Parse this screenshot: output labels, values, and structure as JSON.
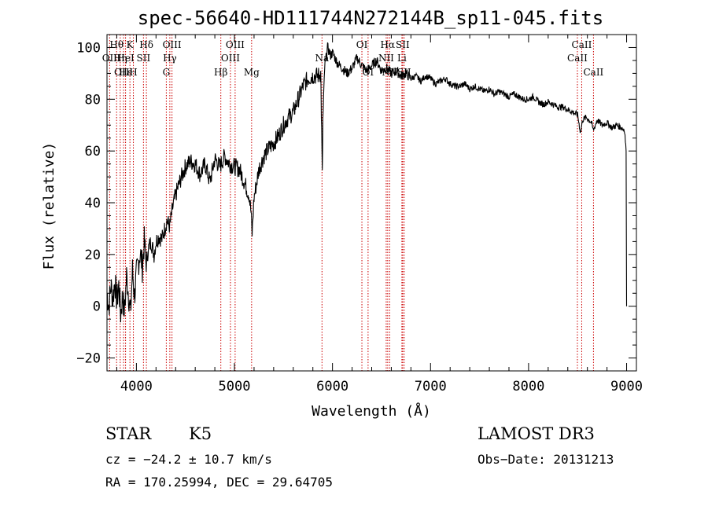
{
  "chart_data": {
    "type": "line",
    "title": "spec-56640-HD111744N272144B_sp11-045.fits",
    "xlabel": "Wavelength (Å)",
    "ylabel": "Flux (relative)",
    "xlim": [
      3700,
      9100
    ],
    "ylim": [
      -25,
      105
    ],
    "x_ticks": [
      4000,
      5000,
      6000,
      7000,
      8000,
      9000
    ],
    "x_tick_labels": [
      "4000",
      "5000",
      "6000",
      "7000",
      "8000",
      "9000"
    ],
    "y_ticks": [
      -20,
      0,
      20,
      40,
      60,
      80,
      100
    ],
    "y_tick_labels": [
      "−20",
      "0",
      "20",
      "40",
      "60",
      "80",
      "100"
    ],
    "series": [
      {
        "name": "flux",
        "anchors": [
          [
            3700,
            5
          ],
          [
            3720,
            0
          ],
          [
            3740,
            8
          ],
          [
            3760,
            3
          ],
          [
            3780,
            10
          ],
          [
            3800,
            2
          ],
          [
            3820,
            8
          ],
          [
            3840,
            -3
          ],
          [
            3860,
            4
          ],
          [
            3880,
            -2
          ],
          [
            3900,
            12
          ],
          [
            3920,
            5
          ],
          [
            3940,
            -3
          ],
          [
            3960,
            14
          ],
          [
            3980,
            4
          ],
          [
            4000,
            12
          ],
          [
            4020,
            17
          ],
          [
            4040,
            21
          ],
          [
            4060,
            15
          ],
          [
            4080,
            25
          ],
          [
            4100,
            16
          ],
          [
            4120,
            22
          ],
          [
            4150,
            25
          ],
          [
            4180,
            20
          ],
          [
            4200,
            25
          ],
          [
            4230,
            27
          ],
          [
            4260,
            26
          ],
          [
            4290,
            30
          ],
          [
            4310,
            33
          ],
          [
            4340,
            31
          ],
          [
            4370,
            38
          ],
          [
            4400,
            43
          ],
          [
            4450,
            49
          ],
          [
            4500,
            54
          ],
          [
            4550,
            56
          ],
          [
            4600,
            55
          ],
          [
            4650,
            51
          ],
          [
            4700,
            55
          ],
          [
            4750,
            48
          ],
          [
            4800,
            57
          ],
          [
            4850,
            54
          ],
          [
            4900,
            58
          ],
          [
            4950,
            55
          ],
          [
            5000,
            54
          ],
          [
            5050,
            53
          ],
          [
            5100,
            48
          ],
          [
            5150,
            43
          ],
          [
            5170,
            36
          ],
          [
            5180,
            28
          ],
          [
            5200,
            42
          ],
          [
            5250,
            53
          ],
          [
            5300,
            58
          ],
          [
            5350,
            61
          ],
          [
            5400,
            63
          ],
          [
            5450,
            66
          ],
          [
            5500,
            70
          ],
          [
            5550,
            73
          ],
          [
            5600,
            75
          ],
          [
            5650,
            80
          ],
          [
            5700,
            85
          ],
          [
            5750,
            88
          ],
          [
            5800,
            89
          ],
          [
            5850,
            89
          ],
          [
            5880,
            90
          ],
          [
            5890,
            67
          ],
          [
            5896,
            50
          ],
          [
            5902,
            72
          ],
          [
            5920,
            92
          ],
          [
            5950,
            100
          ],
          [
            5980,
            97
          ],
          [
            6000,
            98
          ],
          [
            6050,
            94
          ],
          [
            6100,
            92
          ],
          [
            6150,
            90
          ],
          [
            6200,
            92
          ],
          [
            6250,
            96
          ],
          [
            6300,
            93
          ],
          [
            6350,
            91
          ],
          [
            6400,
            93
          ],
          [
            6450,
            95
          ],
          [
            6500,
            91
          ],
          [
            6550,
            92
          ],
          [
            6600,
            90
          ],
          [
            6650,
            91
          ],
          [
            6700,
            89
          ],
          [
            6750,
            90
          ],
          [
            6800,
            88
          ],
          [
            6850,
            89
          ],
          [
            6900,
            87
          ],
          [
            6950,
            89
          ],
          [
            7000,
            88
          ],
          [
            7050,
            86
          ],
          [
            7100,
            87
          ],
          [
            7150,
            88
          ],
          [
            7200,
            86
          ],
          [
            7250,
            85
          ],
          [
            7300,
            85
          ],
          [
            7350,
            86
          ],
          [
            7400,
            84
          ],
          [
            7450,
            85
          ],
          [
            7500,
            84
          ],
          [
            7550,
            83
          ],
          [
            7600,
            84
          ],
          [
            7650,
            82
          ],
          [
            7700,
            83
          ],
          [
            7750,
            82
          ],
          [
            7800,
            81
          ],
          [
            7850,
            82
          ],
          [
            7900,
            81
          ],
          [
            7950,
            80
          ],
          [
            8000,
            80
          ],
          [
            8050,
            81
          ],
          [
            8100,
            79
          ],
          [
            8150,
            78
          ],
          [
            8200,
            79
          ],
          [
            8250,
            78
          ],
          [
            8300,
            77
          ],
          [
            8350,
            77
          ],
          [
            8400,
            76
          ],
          [
            8450,
            75
          ],
          [
            8500,
            74
          ],
          [
            8530,
            67
          ],
          [
            8550,
            72
          ],
          [
            8590,
            73
          ],
          [
            8640,
            71
          ],
          [
            8660,
            68
          ],
          [
            8700,
            72
          ],
          [
            8750,
            70
          ],
          [
            8800,
            71
          ],
          [
            8850,
            69
          ],
          [
            8900,
            70
          ],
          [
            8950,
            69
          ],
          [
            8980,
            68
          ],
          [
            8995,
            60
          ]
        ]
      }
    ],
    "spectral_lines": [
      {
        "label": "Hθ",
        "wavelength": 3798,
        "row": 1
      },
      {
        "label": "OII",
        "wavelength": 3727,
        "row": 2
      },
      {
        "label": "OIII",
        "wavelength": 3869,
        "row": 3
      },
      {
        "label": "Hε",
        "wavelength": 3889,
        "row": 3
      },
      {
        "label": "K",
        "wavelength": 3934,
        "row": 1
      },
      {
        "label": "H",
        "wavelength": 3969,
        "row": 3
      },
      {
        "label": "Hη",
        "wavelength": 3835,
        "row": 2
      },
      {
        "label": "HeI",
        "wavelength": 3889,
        "row": 2
      },
      {
        "label": "Hδ",
        "wavelength": 4102,
        "row": 1
      },
      {
        "label": "SII",
        "wavelength": 4072,
        "row": 2
      },
      {
        "label": "OIII",
        "wavelength": 4363,
        "row": 1
      },
      {
        "label": "Hγ",
        "wavelength": 4341,
        "row": 2
      },
      {
        "label": "G",
        "wavelength": 4305,
        "row": 3
      },
      {
        "label": "Hβ",
        "wavelength": 4861,
        "row": 3
      },
      {
        "label": "OIII",
        "wavelength": 5007,
        "row": 1
      },
      {
        "label": "OIII",
        "wavelength": 4959,
        "row": 2
      },
      {
        "label": "Mg",
        "wavelength": 5175,
        "row": 3
      },
      {
        "label": "Na",
        "wavelength": 5893,
        "row": 2
      },
      {
        "label": "OI",
        "wavelength": 6300,
        "row": 1
      },
      {
        "label": "OI",
        "wavelength": 6363,
        "row": 3
      },
      {
        "label": "Hα",
        "wavelength": 6563,
        "row": 1
      },
      {
        "label": "NII",
        "wavelength": 6548,
        "row": 2
      },
      {
        "label": "NII",
        "wavelength": 6583,
        "row": 3
      },
      {
        "label": "SII",
        "wavelength": 6716,
        "row": 1
      },
      {
        "label": "Li",
        "wavelength": 6708,
        "row": 2
      },
      {
        "label": "SII",
        "wavelength": 6731,
        "row": 3
      },
      {
        "label": "CaII",
        "wavelength": 8542,
        "row": 1
      },
      {
        "label": "CaII",
        "wavelength": 8498,
        "row": 2
      },
      {
        "label": "CaII",
        "wavelength": 8662,
        "row": 3
      }
    ]
  },
  "info": {
    "class": "STAR",
    "subclass": "K5",
    "survey": "LAMOST DR3",
    "cz": "cz = −24.2 ± 10.7 km/s",
    "obs_date": "Obs−Date: 20131213",
    "coords": "RA = 170.25994, DEC =  29.64705"
  },
  "colors": {
    "line": "#000000",
    "marker": "#cc0000",
    "background": "#ffffff"
  }
}
